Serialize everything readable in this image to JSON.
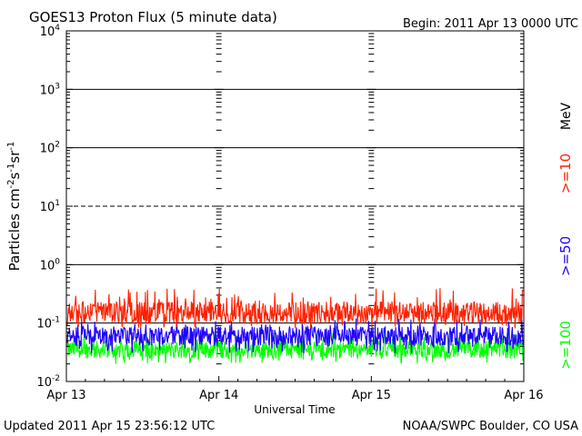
{
  "header": {
    "title": "GOES13 Proton Flux (5 minute data)",
    "begin": "Begin: 2011 Apr 13 0000 UTC"
  },
  "footer": {
    "updated": "Updated 2011 Apr 15 23:56:12 UTC",
    "credit": "NOAA/SWPC Boulder, CO USA"
  },
  "chart_data": {
    "type": "line",
    "title": "GOES13 Proton Flux (5 minute data)",
    "xlabel": "Universal Time",
    "ylabel_parts": [
      "Particles cm",
      "-2",
      "s",
      "-1",
      "sr",
      "-1"
    ],
    "y_scale": "log",
    "ylim": [
      0.01,
      10000
    ],
    "y_ticks": [
      {
        "base": "10",
        "exp": "4",
        "value": 10000
      },
      {
        "base": "10",
        "exp": "3",
        "value": 1000
      },
      {
        "base": "10",
        "exp": "2",
        "value": 100
      },
      {
        "base": "10",
        "exp": "1",
        "value": 10
      },
      {
        "base": "10",
        "exp": "0",
        "value": 1
      },
      {
        "base": "10",
        "exp": "-1",
        "value": 0.1
      },
      {
        "base": "10",
        "exp": "-2",
        "value": 0.01
      }
    ],
    "x_ticks": [
      "Apr 13",
      "Apr 14",
      "Apr 15",
      "Apr 16"
    ],
    "xlim": [
      "2011-04-13",
      "2011-04-16"
    ],
    "threshold_lines": [
      {
        "value": 1000,
        "style": "solid"
      },
      {
        "value": 100,
        "style": "solid"
      },
      {
        "value": 10,
        "style": "dashed"
      },
      {
        "value": 1,
        "style": "solid"
      },
      {
        "value": 0.1,
        "style": "solid"
      }
    ],
    "legend_unit": "MeV",
    "legend_placement": "right",
    "series": [
      {
        "name": ">=10",
        "color": "#ff2000",
        "typical_value": 0.15,
        "range": [
          0.08,
          0.4
        ]
      },
      {
        "name": ">=50",
        "color": "#1e00ff",
        "typical_value": 0.06,
        "range": [
          0.03,
          0.12
        ]
      },
      {
        "name": ">=100",
        "color": "#00ff00",
        "typical_value": 0.035,
        "range": [
          0.02,
          0.07
        ]
      }
    ]
  }
}
